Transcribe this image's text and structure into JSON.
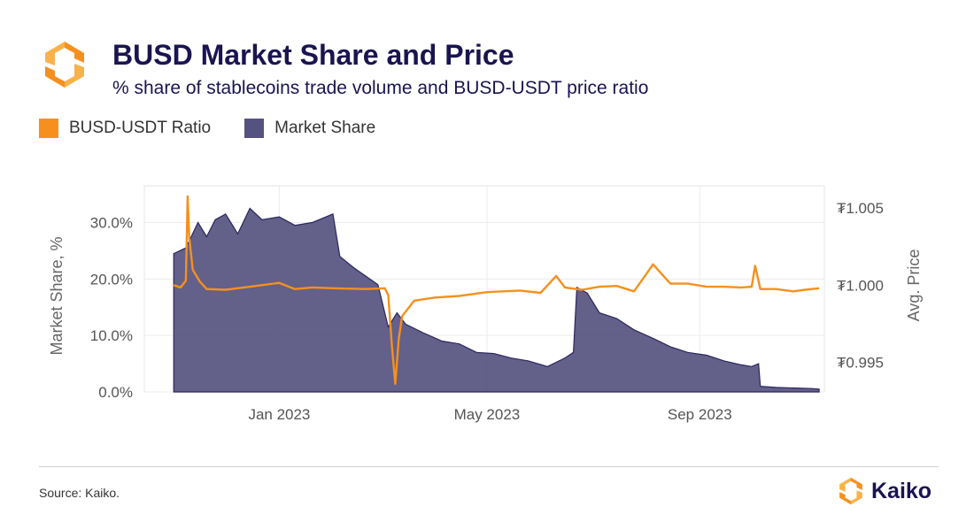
{
  "header": {
    "title": "BUSD Market Share and Price",
    "subtitle": "% share of stablecoins trade volume and BUSD-USDT price ratio"
  },
  "legend": {
    "items": [
      {
        "label": "BUSD-USDT Ratio",
        "color": "#f5901e"
      },
      {
        "label": "Market Share",
        "color": "#56527f"
      }
    ]
  },
  "footer": {
    "source": "Source: Kaiko.",
    "brand": "Kaiko",
    "brand_icon": "kaiko-logo-icon"
  },
  "chart_data": {
    "type": "area",
    "title": "BUSD Market Share and Price",
    "x_ticks": [
      "Jan 2023",
      "May 2023",
      "Sep 2023"
    ],
    "x_tick_dates": [
      "2023-01-01",
      "2023-05-01",
      "2023-09-01"
    ],
    "x_range": [
      "2022-10-15",
      "2023-11-12"
    ],
    "y_left": {
      "label": "Market Share, %",
      "ticks": [
        "0.0%",
        "10.0%",
        "20.0%",
        "30.0%"
      ],
      "tick_values": [
        0,
        10,
        20,
        30
      ],
      "range": [
        0,
        36.5
      ]
    },
    "y_right": {
      "label": "Avg. Price",
      "ticks": [
        "₮0.995",
        "₮1.000",
        "₮1.005"
      ],
      "tick_values": [
        0.995,
        1.0,
        1.005
      ],
      "range": [
        0.99308,
        1.00644
      ]
    },
    "grid": true,
    "legend_position": "top-left",
    "series": [
      {
        "name": "Market Share",
        "axis": "left",
        "color": "#56527f",
        "x": [
          "2022-11-01",
          "2022-11-08",
          "2022-11-15",
          "2022-11-20",
          "2022-11-25",
          "2022-12-01",
          "2022-12-08",
          "2022-12-15",
          "2022-12-22",
          "2023-01-01",
          "2023-01-10",
          "2023-01-20",
          "2023-02-01",
          "2023-02-05",
          "2023-02-13",
          "2023-02-20",
          "2023-02-27",
          "2023-03-05",
          "2023-03-10",
          "2023-03-15",
          "2023-03-25",
          "2023-04-05",
          "2023-04-15",
          "2023-04-25",
          "2023-05-05",
          "2023-05-15",
          "2023-05-25",
          "2023-06-05",
          "2023-06-15",
          "2023-06-20",
          "2023-06-22",
          "2023-06-28",
          "2023-07-05",
          "2023-07-15",
          "2023-07-25",
          "2023-08-05",
          "2023-08-15",
          "2023-08-25",
          "2023-09-05",
          "2023-09-15",
          "2023-09-25",
          "2023-10-01",
          "2023-10-05",
          "2023-10-06",
          "2023-10-15",
          "2023-10-25",
          "2023-11-05",
          "2023-11-09"
        ],
        "values": [
          24.5,
          25.5,
          30.0,
          27.5,
          30.5,
          31.5,
          28.0,
          32.5,
          30.5,
          31.0,
          29.5,
          30.0,
          31.5,
          24.0,
          22.0,
          20.5,
          19.0,
          11.5,
          14.0,
          12.0,
          10.5,
          9.0,
          8.5,
          7.0,
          6.8,
          6.0,
          5.5,
          4.5,
          6.0,
          7.0,
          18.5,
          17.5,
          14.0,
          13.0,
          11.0,
          9.5,
          8.0,
          7.0,
          6.5,
          5.5,
          4.8,
          4.5,
          5.0,
          1.0,
          0.8,
          0.7,
          0.6,
          0.5
        ]
      },
      {
        "name": "BUSD-USDT Ratio",
        "axis": "right",
        "color": "#f5901e",
        "x": [
          "2022-11-01",
          "2022-11-05",
          "2022-11-08",
          "2022-11-09",
          "2022-11-10",
          "2022-11-12",
          "2022-11-16",
          "2022-11-20",
          "2022-12-01",
          "2022-12-15",
          "2023-01-01",
          "2023-01-10",
          "2023-01-20",
          "2023-02-01",
          "2023-02-20",
          "2023-03-03",
          "2023-03-05",
          "2023-03-07",
          "2023-03-09",
          "2023-03-11",
          "2023-03-13",
          "2023-03-20",
          "2023-04-01",
          "2023-04-15",
          "2023-05-01",
          "2023-05-20",
          "2023-06-01",
          "2023-06-10",
          "2023-06-15",
          "2023-06-25",
          "2023-07-05",
          "2023-07-15",
          "2023-07-25",
          "2023-08-01",
          "2023-08-05",
          "2023-08-15",
          "2023-08-25",
          "2023-09-05",
          "2023-09-15",
          "2023-09-25",
          "2023-10-01",
          "2023-10-03",
          "2023-10-06",
          "2023-10-15",
          "2023-10-25",
          "2023-11-01",
          "2023-11-09"
        ],
        "values": [
          1.0,
          0.99985,
          1.0003,
          1.00575,
          1.00305,
          1.001,
          1.00025,
          0.99975,
          0.9997,
          0.9999,
          1.00015,
          0.99975,
          0.99985,
          0.9998,
          0.99975,
          0.9998,
          0.99935,
          0.99615,
          0.9936,
          0.9965,
          0.998,
          0.999,
          0.9992,
          0.9993,
          0.99955,
          0.99965,
          0.9995,
          1.0006,
          0.99985,
          0.9997,
          0.9999,
          0.99995,
          0.9996,
          1.0007,
          1.00135,
          1.0001,
          1.0001,
          0.9999,
          0.9999,
          0.99985,
          0.9999,
          1.00125,
          0.99975,
          0.99975,
          0.9996,
          0.9997,
          0.9998
        ]
      }
    ]
  }
}
